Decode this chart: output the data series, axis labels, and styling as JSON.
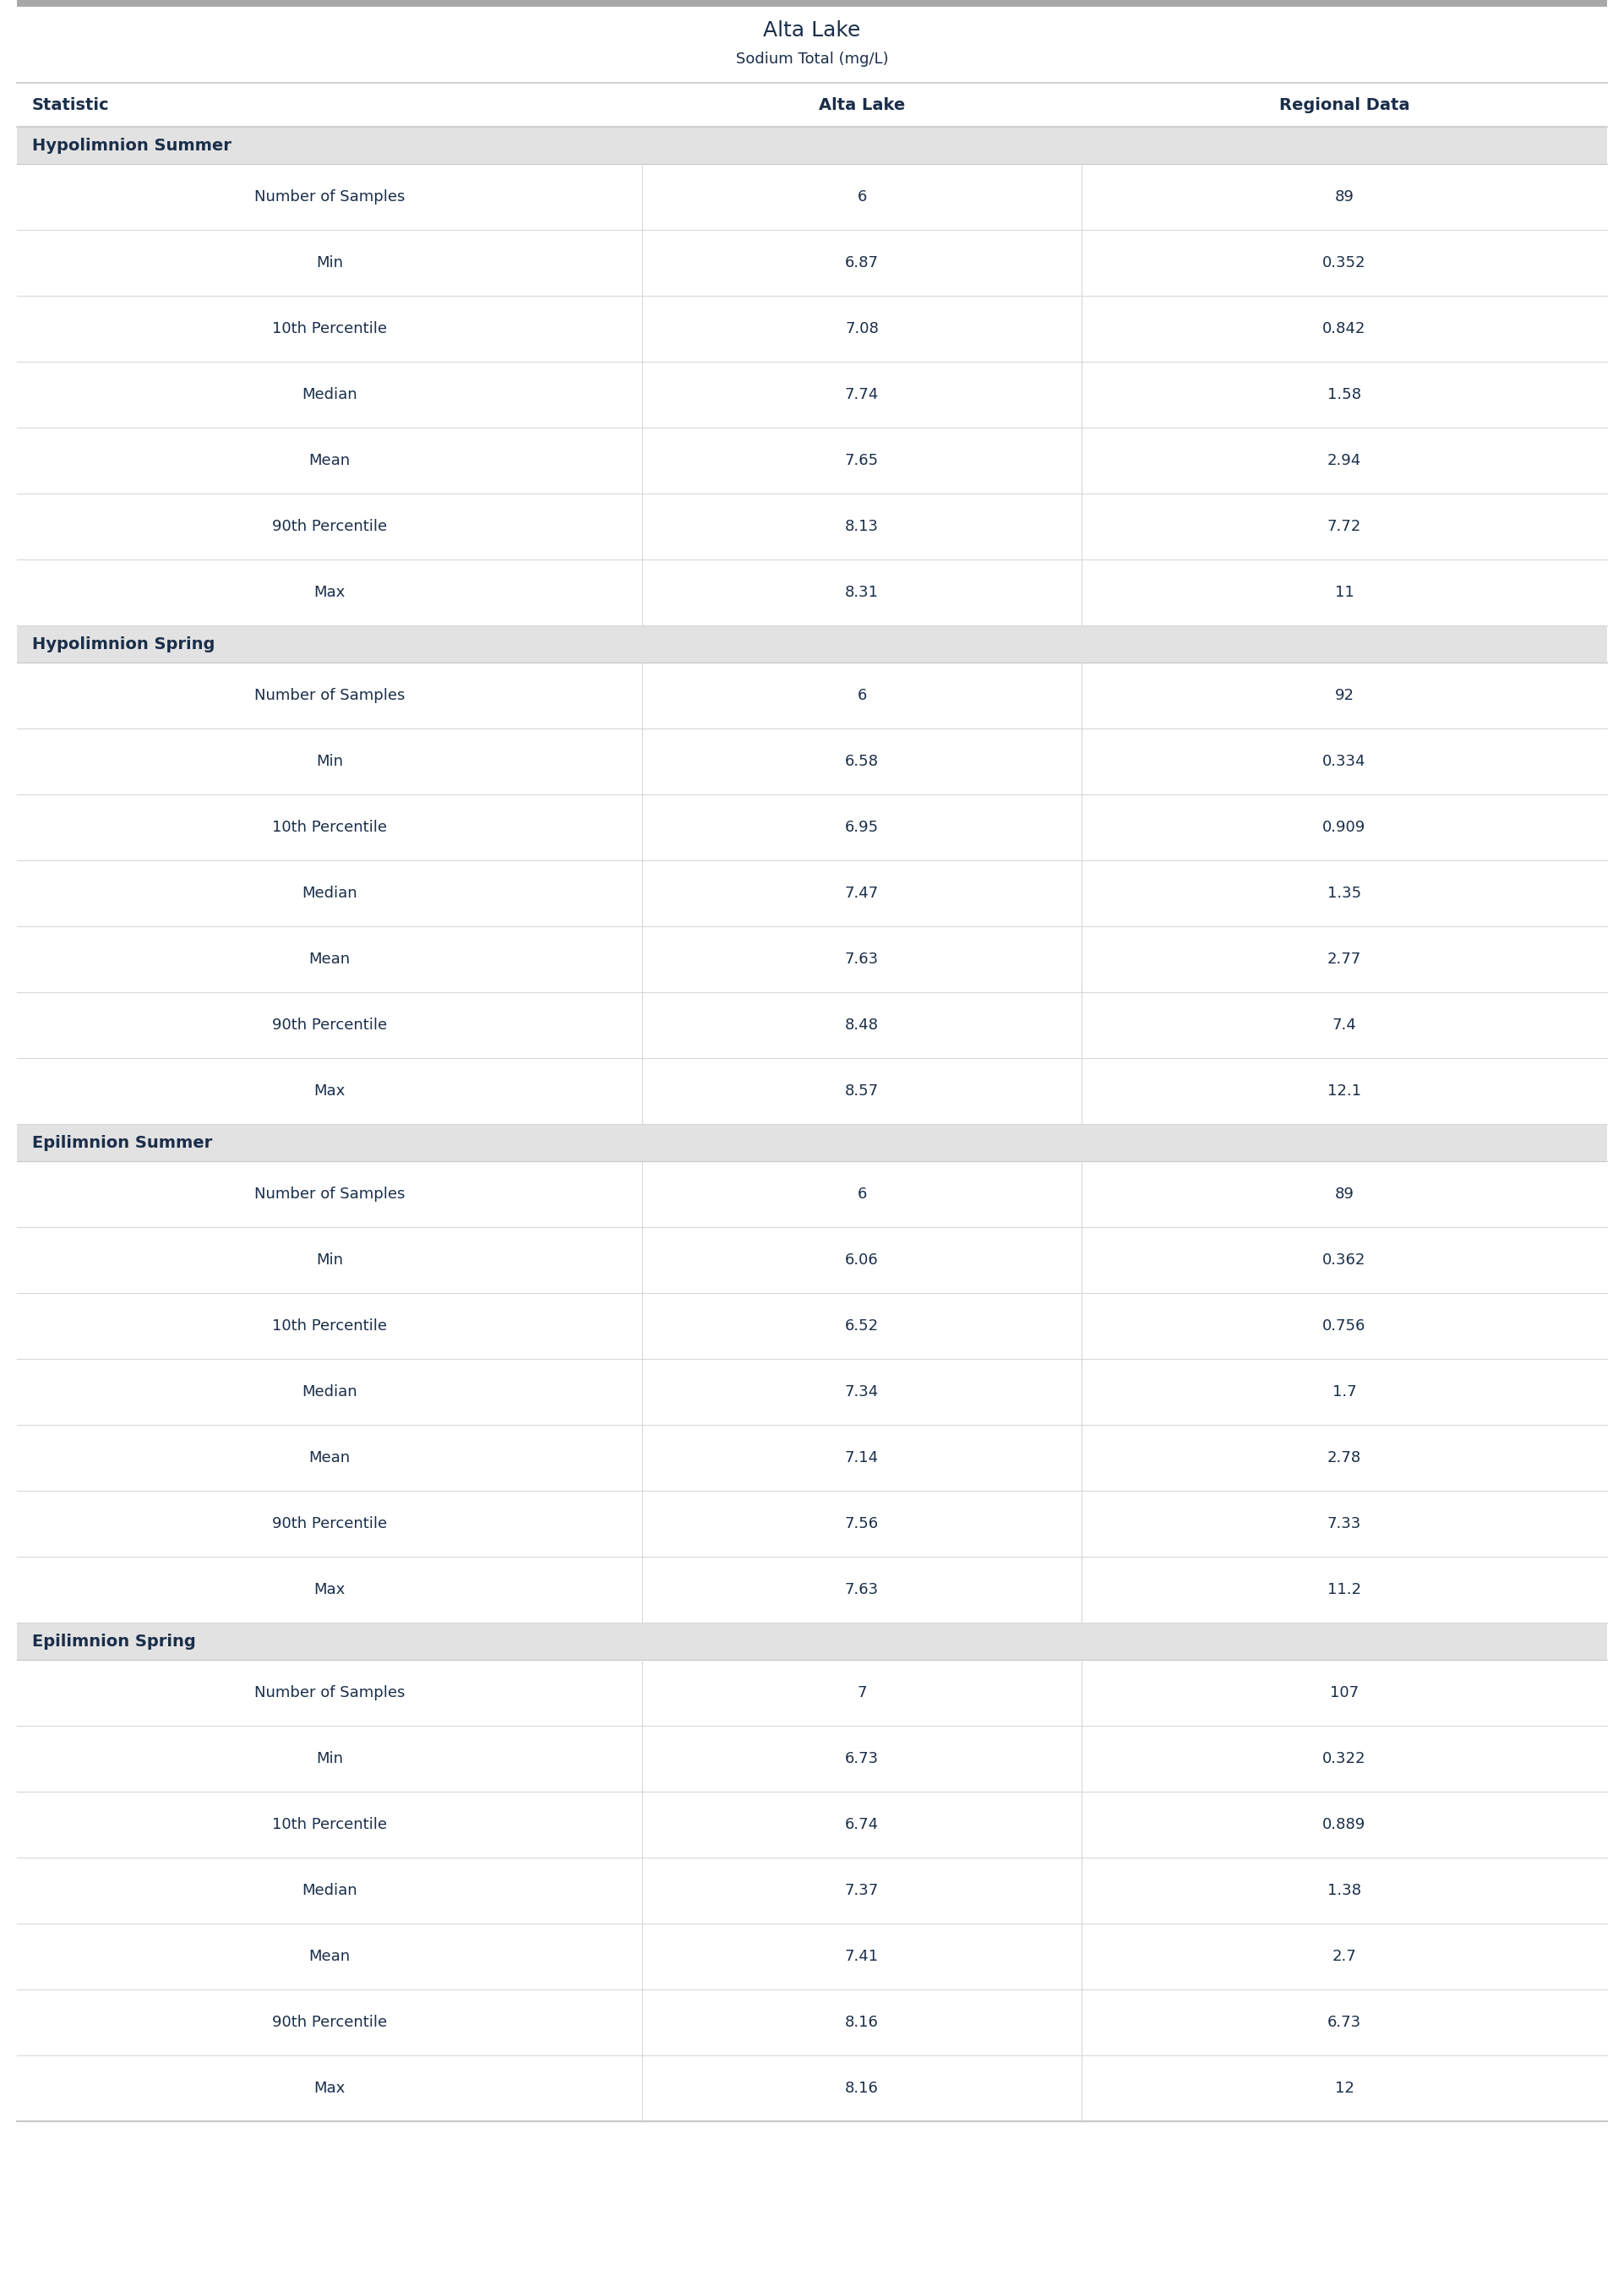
{
  "title": "Alta Lake",
  "subtitle": "Sodium Total (mg/L)",
  "col_headers": [
    "Statistic",
    "Alta Lake",
    "Regional Data"
  ],
  "sections": [
    {
      "name": "Hypolimnion Summer",
      "rows": [
        [
          "Number of Samples",
          "6",
          "89"
        ],
        [
          "Min",
          "6.87",
          "0.352"
        ],
        [
          "10th Percentile",
          "7.08",
          "0.842"
        ],
        [
          "Median",
          "7.74",
          "1.58"
        ],
        [
          "Mean",
          "7.65",
          "2.94"
        ],
        [
          "90th Percentile",
          "8.13",
          "7.72"
        ],
        [
          "Max",
          "8.31",
          "11"
        ]
      ]
    },
    {
      "name": "Hypolimnion Spring",
      "rows": [
        [
          "Number of Samples",
          "6",
          "92"
        ],
        [
          "Min",
          "6.58",
          "0.334"
        ],
        [
          "10th Percentile",
          "6.95",
          "0.909"
        ],
        [
          "Median",
          "7.47",
          "1.35"
        ],
        [
          "Mean",
          "7.63",
          "2.77"
        ],
        [
          "90th Percentile",
          "8.48",
          "7.4"
        ],
        [
          "Max",
          "8.57",
          "12.1"
        ]
      ]
    },
    {
      "name": "Epilimnion Summer",
      "rows": [
        [
          "Number of Samples",
          "6",
          "89"
        ],
        [
          "Min",
          "6.06",
          "0.362"
        ],
        [
          "10th Percentile",
          "6.52",
          "0.756"
        ],
        [
          "Median",
          "7.34",
          "1.7"
        ],
        [
          "Mean",
          "7.14",
          "2.78"
        ],
        [
          "90th Percentile",
          "7.56",
          "7.33"
        ],
        [
          "Max",
          "7.63",
          "11.2"
        ]
      ]
    },
    {
      "name": "Epilimnion Spring",
      "rows": [
        [
          "Number of Samples",
          "7",
          "107"
        ],
        [
          "Min",
          "6.73",
          "0.322"
        ],
        [
          "10th Percentile",
          "6.74",
          "0.889"
        ],
        [
          "Median",
          "7.37",
          "1.38"
        ],
        [
          "Mean",
          "7.41",
          "2.7"
        ],
        [
          "90th Percentile",
          "8.16",
          "6.73"
        ],
        [
          "Max",
          "8.16",
          "12"
        ]
      ]
    }
  ],
  "top_border_color": "#a8a8a8",
  "header_border_color": "#c8c8c8",
  "section_header_bg": "#e2e2e2",
  "row_bg_white": "#ffffff",
  "row_border_color": "#d8d8d8",
  "text_color_dark": "#1a2e4a",
  "figure_bg": "#ffffff",
  "title_fontsize": 18,
  "subtitle_fontsize": 13,
  "header_fontsize": 14,
  "section_fontsize": 14,
  "cell_fontsize": 13
}
